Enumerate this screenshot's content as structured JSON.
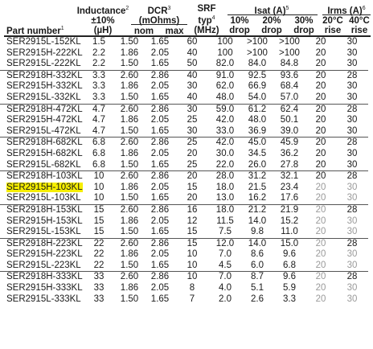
{
  "header": {
    "part_number": "Part number",
    "part_number_sup": "1",
    "inductance": "Inductance",
    "inductance_sup": "2",
    "inductance_tol": "±10%",
    "inductance_unit": "(µH)",
    "dcr": "DCR",
    "dcr_sup": "3",
    "dcr_unit": "(mOhms)",
    "dcr_nom": "nom",
    "dcr_max": "max",
    "srf": "SRF",
    "srf_typ": "typ",
    "srf_sup": "4",
    "srf_unit": "(MHz)",
    "isat": "Isat (A)",
    "isat_sup": "5",
    "isat_10a": "10%",
    "isat_10b": "drop",
    "isat_20a": "20%",
    "isat_20b": "drop",
    "isat_30a": "30%",
    "isat_30b": "drop",
    "irms": "Irms (A)",
    "irms_sup": "6",
    "irms_20a": "20°C",
    "irms_20b": "rise",
    "irms_40a": "40°C",
    "irms_40b": "rise"
  },
  "rows": [
    [
      "SER2915L-152KL",
      "1.5",
      "1.50",
      "1.65",
      "60",
      "100",
      ">100",
      ">100",
      "20",
      "30"
    ],
    [
      "SER2915H-222KL",
      "2.2",
      "1.86",
      "2.05",
      "40",
      "100",
      ">100",
      ">100",
      "20",
      "30"
    ],
    [
      "SER2915L-222KL",
      "2.2",
      "1.50",
      "1.65",
      "50",
      "82.0",
      "84.0",
      "84.8",
      "20",
      "30"
    ],
    [
      "SER2918H-332KL",
      "3.3",
      "2.60",
      "2.86",
      "40",
      "91.0",
      "92.5",
      "93.6",
      "20",
      "28"
    ],
    [
      "SER2915H-332KL",
      "3.3",
      "1.86",
      "2.05",
      "30",
      "62.0",
      "66.9",
      "68.4",
      "20",
      "30"
    ],
    [
      "SER2915L-332KL",
      "3.3",
      "1.50",
      "1.65",
      "40",
      "48.0",
      "54.0",
      "57.0",
      "20",
      "30"
    ],
    [
      "SER2918H-472KL",
      "4.7",
      "2.60",
      "2.86",
      "30",
      "59.0",
      "61.2",
      "62.4",
      "20",
      "28"
    ],
    [
      "SER2915H-472KL",
      "4.7",
      "1.86",
      "2.05",
      "25",
      "42.0",
      "48.0",
      "50.1",
      "20",
      "30"
    ],
    [
      "SER2915L-472KL",
      "4.7",
      "1.50",
      "1.65",
      "30",
      "33.0",
      "36.9",
      "39.0",
      "20",
      "30"
    ],
    [
      "SER2918H-682KL",
      "6.8",
      "2.60",
      "2.86",
      "25",
      "42.0",
      "45.0",
      "45.9",
      "20",
      "28"
    ],
    [
      "SER2915H-682KL",
      "6.8",
      "1.86",
      "2.05",
      "20",
      "30.0",
      "34.5",
      "36.2",
      "20",
      "30"
    ],
    [
      "SER2915L-682KL",
      "6.8",
      "1.50",
      "1.65",
      "25",
      "22.0",
      "26.0",
      "27.8",
      "20",
      "30"
    ],
    [
      "SER2918H-103KL",
      "10",
      "2.60",
      "2.86",
      "20",
      "28.0",
      "31.2",
      "32.1",
      "20",
      "28"
    ],
    [
      "SER2915H-103KL",
      "10",
      "1.86",
      "2.05",
      "15",
      "18.0",
      "21.5",
      "23.4",
      "20",
      "30"
    ],
    [
      "SER2915L-103KL",
      "10",
      "1.50",
      "1.65",
      "20",
      "13.0",
      "16.2",
      "17.6",
      "20",
      "30"
    ],
    [
      "SER2918H-153KL",
      "15",
      "2.60",
      "2.86",
      "16",
      "18.0",
      "21.2",
      "21.9",
      "20",
      "28"
    ],
    [
      "SER2915H-153KL",
      "15",
      "1.86",
      "2.05",
      "12",
      "11.5",
      "14.0",
      "15.2",
      "20",
      "30"
    ],
    [
      "SER2915L-153KL",
      "15",
      "1.50",
      "1.65",
      "15",
      "7.5",
      "9.8",
      "11.0",
      "20",
      "30"
    ],
    [
      "SER2918H-223KL",
      "22",
      "2.60",
      "2.86",
      "15",
      "12.0",
      "14.0",
      "15.0",
      "20",
      "28"
    ],
    [
      "SER2915H-223KL",
      "22",
      "1.86",
      "2.05",
      "10",
      "7.0",
      "8.6",
      "9.6",
      "20",
      "30"
    ],
    [
      "SER2915L-223KL",
      "22",
      "1.50",
      "1.65",
      "10",
      "4.5",
      "6.0",
      "6.8",
      "20",
      "30"
    ],
    [
      "SER2918H-333KL",
      "33",
      "2.60",
      "2.86",
      "10",
      "7.0",
      "8.7",
      "9.6",
      "20",
      "28"
    ],
    [
      "SER2915H-333KL",
      "33",
      "1.86",
      "2.05",
      "8",
      "4.0",
      "5.1",
      "5.9",
      "20",
      "30"
    ],
    [
      "SER2915L-333KL",
      "33",
      "1.50",
      "1.65",
      "7",
      "2.0",
      "2.6",
      "3.3",
      "20",
      "30"
    ]
  ],
  "highlighted_part": "SER2915H-103KL",
  "highlight_color": "#f6ee00",
  "dim_color": "#9a9a9a"
}
